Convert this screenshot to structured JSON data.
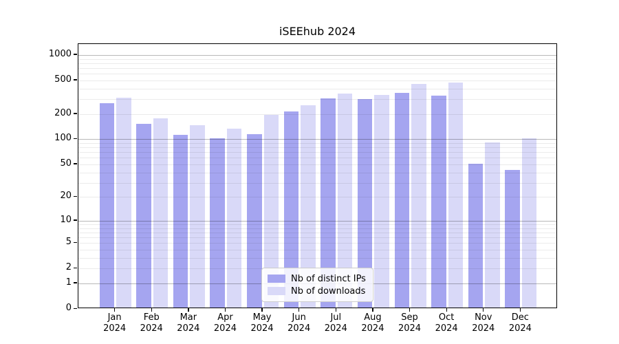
{
  "title": "iSEEhub 2024",
  "legend": {
    "items": [
      {
        "label": "Nb of distinct IPs",
        "color": "#a5a5f0"
      },
      {
        "label": "Nb of downloads",
        "color": "#d9d9f8"
      }
    ]
  },
  "chart_data": {
    "type": "bar",
    "title": "iSEEhub 2024",
    "categories": [
      "Jan",
      "Feb",
      "Mar",
      "Apr",
      "May",
      "Jun",
      "Jul",
      "Aug",
      "Sep",
      "Oct",
      "Nov",
      "Dec"
    ],
    "category_year": "2024",
    "series": [
      {
        "name": "Nb of distinct IPs",
        "color": "#a5a5f0",
        "values": [
          265,
          152,
          112,
          101,
          114,
          213,
          303,
          297,
          353,
          328,
          50,
          42
        ]
      },
      {
        "name": "Nb of downloads",
        "color": "#d9d9f8",
        "values": [
          310,
          174,
          146,
          133,
          191,
          251,
          343,
          335,
          447,
          470,
          90,
          101
        ]
      }
    ],
    "xlabel": "",
    "ylabel": "",
    "yscale": "log1p",
    "yticks": [
      0,
      1,
      2,
      5,
      10,
      20,
      50,
      100,
      200,
      500,
      1000
    ],
    "ylim": [
      0,
      1350
    ],
    "grid": true,
    "grid_major_at": [
      1,
      10,
      100,
      1000
    ],
    "legend_position": "lower center"
  }
}
